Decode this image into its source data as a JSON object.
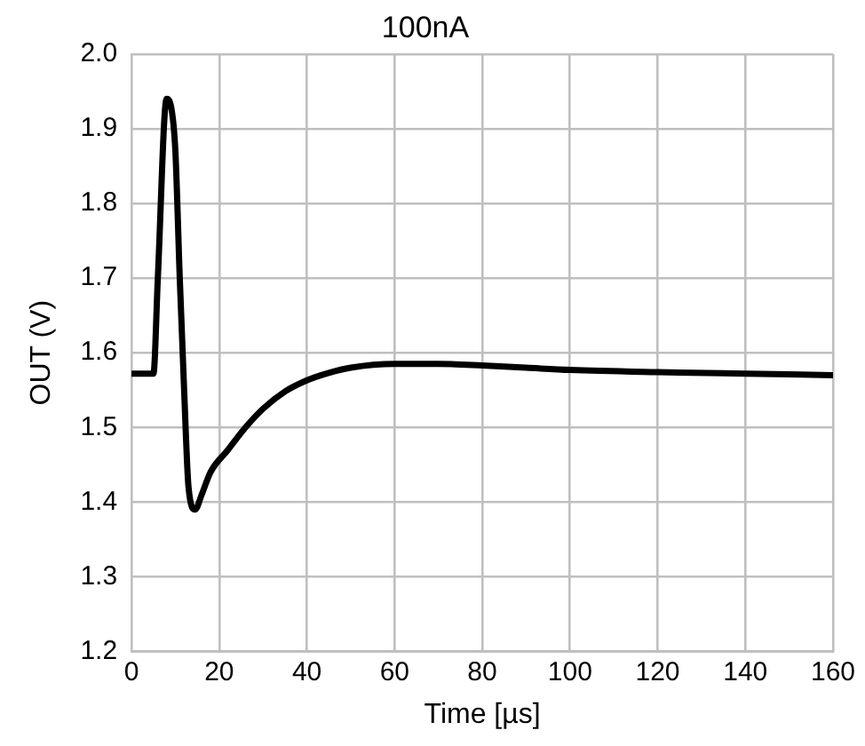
{
  "chart_data": {
    "type": "line",
    "title": "100nA",
    "xlabel": "Time [µs]",
    "ylabel": "OUT (V)",
    "x": [
      0,
      5,
      6,
      8,
      9,
      10,
      11,
      12,
      13,
      14.5,
      16,
      18,
      22,
      26,
      30,
      35,
      40,
      45,
      50,
      60,
      70,
      80,
      90,
      100,
      120,
      140,
      160
    ],
    "series": [
      {
        "color": "#000000",
        "values": [
          1.572,
          1.572,
          1.7,
          1.94,
          1.93,
          1.87,
          1.7,
          1.55,
          1.42,
          1.39,
          1.41,
          1.44,
          1.47,
          1.5,
          1.525,
          1.548,
          1.563,
          1.573,
          1.58,
          1.585,
          1.585,
          1.583,
          1.58,
          1.577,
          1.574,
          1.572,
          1.57
        ]
      }
    ],
    "xlim": [
      0,
      160
    ],
    "xticks": [
      0,
      20,
      40,
      60,
      80,
      100,
      120,
      140,
      160
    ],
    "ylim": [
      1.2,
      2.0
    ],
    "yticks": [
      1.2,
      1.3,
      1.4,
      1.5,
      1.6,
      1.7,
      1.8,
      1.9,
      {
        "value": 2,
        "label": "2.0"
      }
    ],
    "grid": true,
    "legend": false,
    "marker": "none",
    "line_style": "solid"
  }
}
